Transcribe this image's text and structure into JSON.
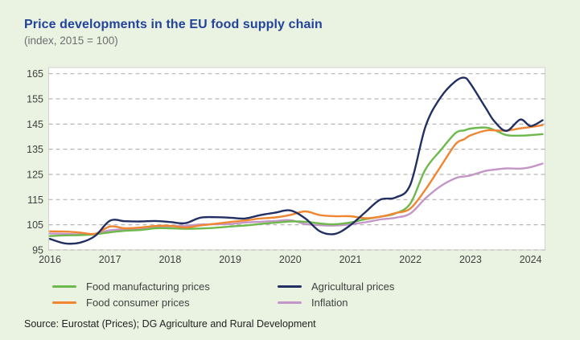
{
  "page": {
    "background": "#eaf3e1"
  },
  "header": {
    "title": "Price developments in the EU food supply chain",
    "subtitle": "(index, 2015 = 100)"
  },
  "source": {
    "text": "Source: Eurostat (Prices); DG Agriculture and Rural Development"
  },
  "colors": {
    "background": "#eaf3e1",
    "title": "#23439a",
    "axis_text": "#3f4041",
    "gridline": "#b5b6b4",
    "plot_fill": "#ffffff",
    "plot_border": "#d2d2d0"
  },
  "chart_data": {
    "type": "line",
    "title": "Price developments in the EU food supply chain",
    "subtitle": "(index, 2015 = 100)",
    "xlabel": "",
    "ylabel": "index, 2015 = 100",
    "ylim": [
      95,
      165
    ],
    "y_ticks": [
      95,
      105,
      115,
      125,
      135,
      145,
      155,
      165
    ],
    "x_ticks": [
      2016,
      2017,
      2018,
      2019,
      2020,
      2021,
      2022,
      2023,
      2024
    ],
    "grid": "horizontal-dashed",
    "legend_position": "bottom",
    "x": [
      2016.0,
      2016.25,
      2016.5,
      2016.75,
      2017.0,
      2017.25,
      2017.5,
      2017.75,
      2018.0,
      2018.25,
      2018.5,
      2018.75,
      2019.0,
      2019.25,
      2019.5,
      2019.75,
      2020.0,
      2020.25,
      2020.5,
      2020.75,
      2021.0,
      2021.25,
      2021.5,
      2021.75,
      2022.0,
      2022.25,
      2022.5,
      2022.75,
      2022.9,
      2023.0,
      2023.25,
      2023.4,
      2023.6,
      2023.83,
      2024.0,
      2024.2
    ],
    "series": [
      {
        "name": "Food manufacturing prices",
        "color": "#6eb94b",
        "values": [
          100.5,
          100.8,
          100.9,
          101.2,
          102.0,
          102.6,
          102.9,
          103.6,
          103.6,
          103.4,
          103.5,
          103.8,
          104.3,
          104.7,
          105.3,
          105.8,
          106.3,
          106.2,
          105.5,
          105.2,
          105.9,
          107.2,
          108.2,
          109.5,
          113.5,
          127.0,
          134.5,
          141.4,
          142.5,
          143.2,
          143.6,
          142.6,
          140.6,
          140.4,
          140.6,
          141.0
        ]
      },
      {
        "name": "Food consumer prices",
        "color": "#f08532",
        "values": [
          102.4,
          102.3,
          101.9,
          101.4,
          104.3,
          103.6,
          103.9,
          104.5,
          104.6,
          103.9,
          104.7,
          105.4,
          106.1,
          106.7,
          107.5,
          107.9,
          108.9,
          110.3,
          108.8,
          108.4,
          108.4,
          107.6,
          108.2,
          109.6,
          111.5,
          119.0,
          128.0,
          137.0,
          139.0,
          140.5,
          142.4,
          142.5,
          142.4,
          143.3,
          143.8,
          144.6
        ]
      },
      {
        "name": "Agricultural prices",
        "color": "#222f63",
        "values": [
          99.4,
          97.6,
          97.9,
          100.5,
          106.6,
          106.4,
          106.3,
          106.5,
          106.1,
          105.6,
          107.8,
          108.0,
          107.8,
          107.5,
          108.8,
          109.8,
          110.7,
          107.5,
          102.3,
          101.4,
          104.8,
          110.0,
          115.0,
          115.8,
          121.0,
          144.0,
          155.5,
          162.0,
          163.4,
          161.0,
          151.5,
          146.0,
          142.3,
          146.8,
          144.2,
          146.5
        ]
      },
      {
        "name": "Inflation",
        "color": "#c496c8",
        "values": [
          101.5,
          101.4,
          101.2,
          101.4,
          102.8,
          103.2,
          103.3,
          103.8,
          104.4,
          104.6,
          105.1,
          105.2,
          105.3,
          105.9,
          106.2,
          106.5,
          106.8,
          105.3,
          104.8,
          104.7,
          105.2,
          106.0,
          107.1,
          107.8,
          109.5,
          115.5,
          120.3,
          123.5,
          124.2,
          124.6,
          126.4,
          126.9,
          127.4,
          127.3,
          127.9,
          129.3
        ]
      }
    ]
  }
}
